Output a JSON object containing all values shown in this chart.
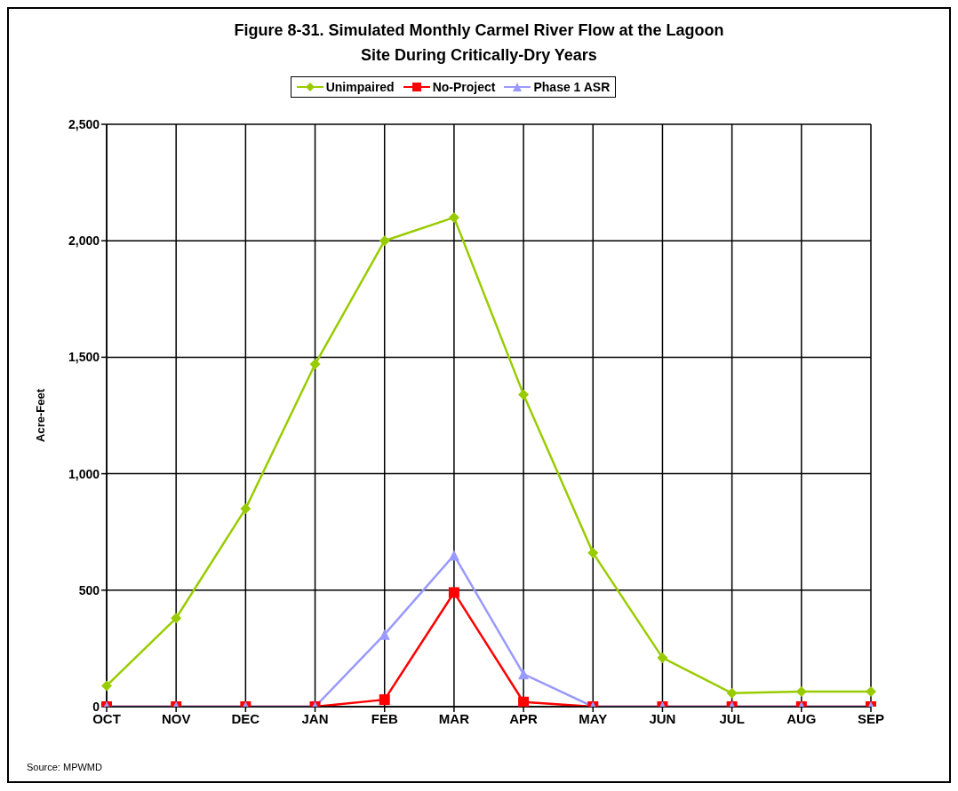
{
  "chart_data": {
    "type": "line",
    "title": "Figure 8-31.  Simulated Monthly Carmel River Flow at the Lagoon Site During Critically-Dry Years",
    "ylabel": "Acre-Feet",
    "annotations": [
      "Source: MPWMD"
    ],
    "categories": [
      "OCT",
      "NOV",
      "DEC",
      "JAN",
      "FEB",
      "MAR",
      "APR",
      "MAY",
      "JUN",
      "JUL",
      "AUG",
      "SEP"
    ],
    "series": [
      {
        "name": "Unimpaired",
        "color": "#99cc00",
        "marker": "diamond",
        "values": [
          90,
          380,
          850,
          1470,
          2000,
          2100,
          1340,
          660,
          210,
          58,
          65,
          65
        ]
      },
      {
        "name": "No-Project",
        "color": "#ff0000",
        "marker": "square",
        "values": [
          0,
          0,
          0,
          0,
          30,
          490,
          20,
          0,
          0,
          0,
          0,
          0
        ]
      },
      {
        "name": "Phase 1 ASR",
        "color": "#9999ff",
        "marker": "triangle",
        "values": [
          0,
          0,
          0,
          0,
          310,
          650,
          140,
          0,
          0,
          0,
          0,
          0
        ]
      }
    ],
    "ylim": [
      0,
      2500
    ],
    "yticks": [
      {
        "value": 0,
        "label": "0"
      },
      {
        "value": 500,
        "label": "500"
      },
      {
        "value": 1000,
        "label": "1,000"
      },
      {
        "value": 1500,
        "label": "1,500"
      },
      {
        "value": 2000,
        "label": "2,000"
      },
      {
        "value": 2500,
        "label": "2,500"
      }
    ],
    "grid": true,
    "legend": "top",
    "line_style": "solid"
  }
}
